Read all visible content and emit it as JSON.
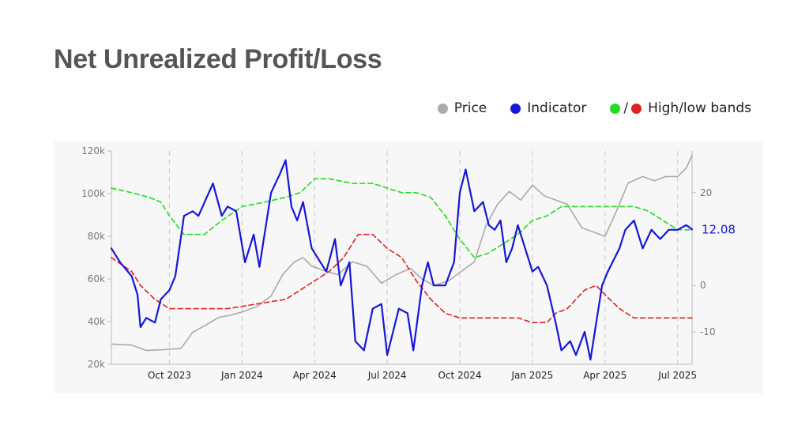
{
  "title": "Net Unrealized Profit/Loss",
  "legend": {
    "price": "Price",
    "indicator": "Indicator",
    "bands_sep": "/",
    "bands": "High/low bands"
  },
  "colors": {
    "price": "#aaaaaa",
    "indicator": "#1616d8",
    "high_band": "#22dd22",
    "low_band": "#dd2222",
    "title": "#555555",
    "plot_bg": "#f7f7f7"
  },
  "chart_data": {
    "type": "line",
    "title": "Net Unrealized Profit/Loss",
    "x_tick_labels": [
      "Oct 2023",
      "Jan 2024",
      "Apr 2024",
      "Jul 2024",
      "Oct 2024",
      "Jan 2025",
      "Apr 2025",
      "Jul 2025"
    ],
    "x_range": [
      2023.55,
      2025.55
    ],
    "y_left": {
      "label": "",
      "ticks": [
        "20k",
        "40k",
        "60k",
        "80k",
        "100k",
        "120k"
      ],
      "range": [
        20000,
        120000
      ]
    },
    "y_right": {
      "label": "",
      "ticks": [
        "-10",
        "0",
        "20"
      ],
      "range": [
        -17,
        29
      ]
    },
    "grid": "vertical dashed at x ticks",
    "legend_position": "top-right",
    "last_value_label": "12.08",
    "series": [
      {
        "name": "Price",
        "axis": "left",
        "x": [
          2023.55,
          2023.62,
          2023.67,
          2023.73,
          2023.79,
          2023.83,
          2023.87,
          2023.92,
          2023.96,
          2024.0,
          2024.05,
          2024.1,
          2024.14,
          2024.18,
          2024.21,
          2024.24,
          2024.28,
          2024.33,
          2024.38,
          2024.43,
          2024.48,
          2024.53,
          2024.58,
          2024.62,
          2024.66,
          2024.71,
          2024.75,
          2024.8,
          2024.84,
          2024.88,
          2024.92,
          2024.96,
          2025.0,
          2025.04,
          2025.08,
          2025.12,
          2025.17,
          2025.21,
          2025.25,
          2025.29,
          2025.33,
          2025.38,
          2025.42,
          2025.46,
          2025.5,
          2025.53,
          2025.55
        ],
        "y": [
          29500,
          29000,
          26500,
          26800,
          27500,
          35000,
          38000,
          42000,
          43000,
          44500,
          47000,
          52000,
          62000,
          68000,
          70000,
          66000,
          64000,
          62000,
          68000,
          66000,
          58000,
          62000,
          65000,
          60000,
          57000,
          59000,
          63000,
          68000,
          85000,
          95000,
          101000,
          97000,
          104000,
          99000,
          97000,
          95000,
          84000,
          82000,
          80000,
          92000,
          105000,
          108000,
          106000,
          108000,
          108000,
          112000,
          118000
        ]
      },
      {
        "name": "Indicator",
        "axis": "right",
        "x": [
          2023.55,
          2023.58,
          2023.62,
          2023.64,
          2023.65,
          2023.67,
          2023.7,
          2023.72,
          2023.75,
          2023.77,
          2023.8,
          2023.83,
          2023.85,
          2023.9,
          2023.93,
          2023.95,
          2023.98,
          2024.01,
          2024.04,
          2024.06,
          2024.1,
          2024.13,
          2024.15,
          2024.17,
          2024.19,
          2024.21,
          2024.24,
          2024.27,
          2024.29,
          2024.32,
          2024.34,
          2024.37,
          2024.39,
          2024.42,
          2024.45,
          2024.48,
          2024.5,
          2024.52,
          2024.54,
          2024.57,
          2024.59,
          2024.62,
          2024.64,
          2024.66,
          2024.7,
          2024.73,
          2024.75,
          2024.77,
          2024.8,
          2024.83,
          2024.85,
          2024.87,
          2024.89,
          2024.91,
          2024.93,
          2024.95,
          2024.98,
          2025.0,
          2025.02,
          2025.05,
          2025.08,
          2025.1,
          2025.13,
          2025.15,
          2025.18,
          2025.2,
          2025.22,
          2025.24,
          2025.26,
          2025.3,
          2025.32,
          2025.35,
          2025.38,
          2025.41,
          2025.44,
          2025.47,
          2025.5,
          2025.53,
          2025.55
        ],
        "y": [
          8,
          5,
          2,
          -2,
          -9,
          -7,
          -8,
          -3,
          -1,
          2,
          15,
          16,
          15,
          22,
          15,
          17,
          16,
          5,
          11,
          4,
          20,
          24,
          27,
          17,
          14,
          18,
          8,
          5,
          3,
          10,
          0,
          5,
          -12,
          -14,
          -5,
          -4,
          -15,
          -10,
          -5,
          -6,
          -14,
          0,
          5,
          0,
          0,
          5,
          20,
          25,
          16,
          18,
          13,
          12,
          14,
          5,
          8,
          13,
          7,
          3,
          4,
          0,
          -8,
          -14,
          -12,
          -15,
          -10,
          -16,
          -8,
          0,
          3,
          8,
          12,
          14,
          8,
          12,
          10,
          12,
          12,
          13,
          12.08
        ]
      },
      {
        "name": "High band",
        "axis": "right",
        "x": [
          2023.55,
          2023.62,
          2023.68,
          2023.72,
          2023.75,
          2023.8,
          2023.87,
          2023.93,
          2024.0,
          2024.08,
          2024.15,
          2024.2,
          2024.25,
          2024.3,
          2024.38,
          2024.45,
          2024.5,
          2024.55,
          2024.6,
          2024.65,
          2024.7,
          2024.75,
          2024.8,
          2024.85,
          2024.9,
          2024.95,
          2025.0,
          2025.05,
          2025.1,
          2025.15,
          2025.2,
          2025.25,
          2025.3,
          2025.35,
          2025.4,
          2025.45,
          2025.5,
          2025.55
        ],
        "y": [
          21,
          20,
          19,
          18,
          15,
          11,
          11,
          14,
          17,
          18,
          19,
          20,
          23,
          23,
          22,
          22,
          21,
          20,
          20,
          19,
          15,
          10,
          6,
          7,
          9,
          11,
          14,
          15,
          17,
          17,
          17,
          17,
          17,
          17,
          16,
          14,
          12,
          12
        ]
      },
      {
        "name": "Low band",
        "axis": "right",
        "x": [
          2023.55,
          2023.62,
          2023.65,
          2023.7,
          2023.75,
          2023.85,
          2023.95,
          2024.05,
          2024.15,
          2024.2,
          2024.25,
          2024.3,
          2024.35,
          2024.4,
          2024.45,
          2024.5,
          2024.55,
          2024.6,
          2024.65,
          2024.7,
          2024.75,
          2024.8,
          2024.85,
          2024.9,
          2024.95,
          2025.0,
          2025.05,
          2025.08,
          2025.12,
          2025.15,
          2025.18,
          2025.22,
          2025.25,
          2025.3,
          2025.35,
          2025.4,
          2025.45,
          2025.5,
          2025.55
        ],
        "y": [
          6,
          3,
          0,
          -3,
          -5,
          -5,
          -5,
          -4,
          -3,
          -1,
          1,
          3,
          6,
          11,
          11,
          8,
          6,
          1,
          -3,
          -6,
          -7,
          -7,
          -7,
          -7,
          -7,
          -8,
          -8,
          -6,
          -5,
          -3,
          -1,
          0,
          -2,
          -5,
          -7,
          -7,
          -7,
          -7,
          -7
        ]
      }
    ]
  }
}
